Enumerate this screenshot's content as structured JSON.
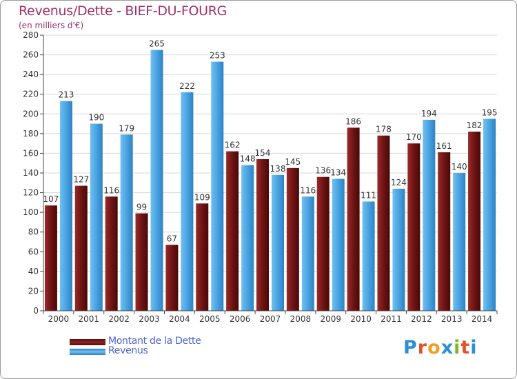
{
  "title": "Revenus/Dette - BIEF-DU-FOURG",
  "subtitle": "(en milliers d'€)",
  "colors": {
    "dette": "#7a1c1c",
    "revenus": "#4aa3e0",
    "title": "#a0306a",
    "legend_text": "#4a64d8",
    "grid": "#d8d8d8"
  },
  "legend": [
    {
      "label": "Montant de la Dette",
      "series": "dette"
    },
    {
      "label": "Revenus",
      "series": "revenus"
    }
  ],
  "logo": {
    "text": "Proxiti"
  },
  "chart_data": {
    "type": "bar",
    "title": "Revenus/Dette - BIEF-DU-FOURG",
    "ylabel": "(en milliers d'€)",
    "xlabel": "",
    "categories": [
      "2000",
      "2001",
      "2002",
      "2003",
      "2004",
      "2005",
      "2006",
      "2007",
      "2008",
      "2009",
      "2010",
      "2011",
      "2012",
      "2013",
      "2014"
    ],
    "series": [
      {
        "name": "Montant de la Dette",
        "values": [
          107,
          127,
          116,
          99,
          67,
          109,
          162,
          154,
          145,
          136,
          186,
          178,
          170,
          161,
          182
        ]
      },
      {
        "name": "Revenus",
        "values": [
          213,
          190,
          179,
          265,
          222,
          253,
          148,
          138,
          116,
          134,
          111,
          124,
          194,
          140,
          195
        ]
      }
    ],
    "ylim": [
      0,
      280
    ],
    "yticks": [
      0,
      20,
      40,
      60,
      80,
      100,
      120,
      140,
      160,
      180,
      200,
      220,
      240,
      260,
      280
    ],
    "grid": true,
    "legend_position": "bottom-left"
  }
}
